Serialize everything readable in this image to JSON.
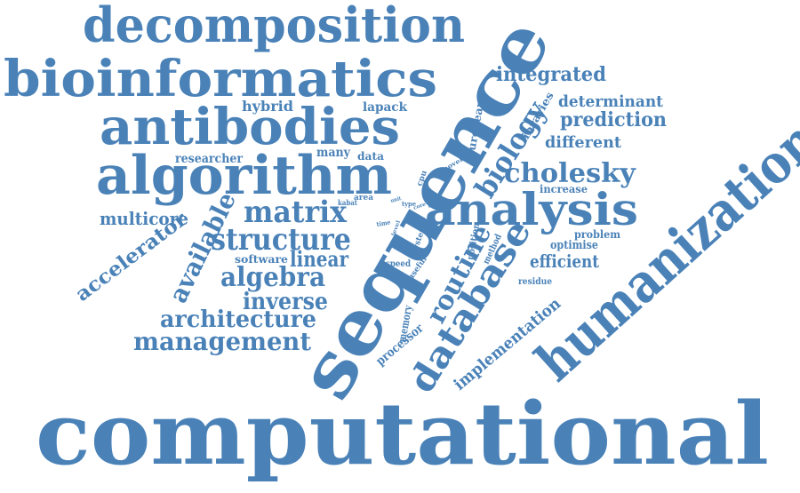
{
  "color": "#4a82b8",
  "words": [
    "computational",
    "sequence",
    "humanization",
    "bioinformatics",
    "decomposition",
    "antibodies",
    "algorithm",
    "analysis",
    "database",
    "structure",
    "matrix",
    "routine",
    "biology",
    "available",
    "accelerator",
    "management",
    "architecture",
    "algebra",
    "inverse",
    "cholesky",
    "integrated",
    "prediction",
    "determinant",
    "implementation",
    "linear",
    "multicore",
    "efficient",
    "different",
    "hybrid",
    "lapack",
    "researcher",
    "many",
    "data",
    "software",
    "optimise",
    "problem",
    "increase",
    "processor",
    "european",
    "libraries",
    "memory",
    "residue",
    "kabat",
    "area",
    "type",
    "core",
    "unit",
    "time",
    "level",
    "speed",
    "useful",
    "system",
    "position",
    "method",
    "cpu",
    "novel"
  ]
}
